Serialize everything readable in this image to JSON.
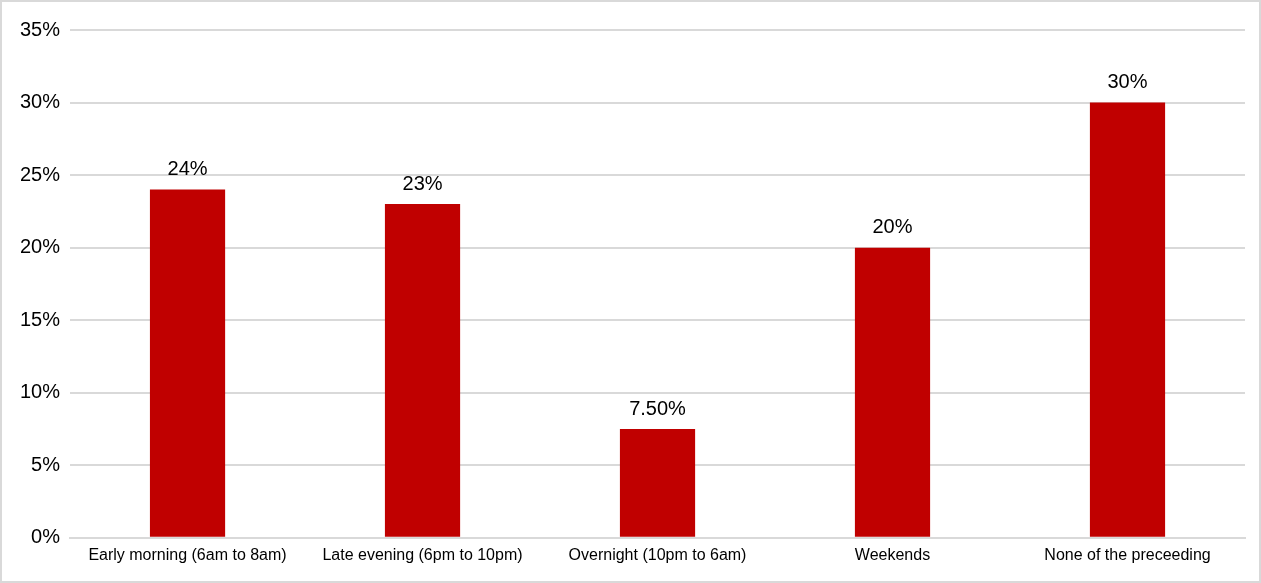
{
  "chart_data": {
    "type": "bar",
    "categories": [
      "Early morning (6am to 8am)",
      "Late evening (6pm to 10pm)",
      "Overnight (10pm to 6am)",
      "Weekends",
      "None of the preceeding"
    ],
    "values": [
      24,
      23,
      7.5,
      20,
      30
    ],
    "value_labels": [
      "24%",
      "23%",
      "7.50%",
      "20%",
      "30%"
    ],
    "color": "#c00000",
    "ylim": [
      0,
      35
    ],
    "yticks": [
      {
        "value": 0,
        "label": "0%"
      },
      {
        "value": 5,
        "label": "5%"
      },
      {
        "value": 10,
        "label": "10%"
      },
      {
        "value": 15,
        "label": "15%"
      },
      {
        "value": 20,
        "label": "20%"
      },
      {
        "value": 25,
        "label": "25%"
      },
      {
        "value": 30,
        "label": "30%"
      },
      {
        "value": 35,
        "label": "35%"
      }
    ],
    "grid": "y"
  }
}
